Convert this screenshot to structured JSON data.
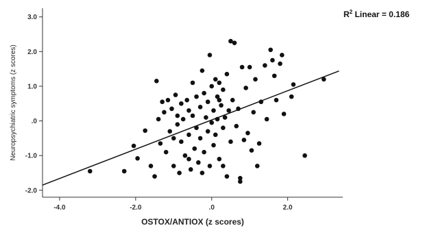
{
  "chart_data": {
    "type": "scatter",
    "xlabel": "OSTOX/ANTIOX (z scores)",
    "ylabel": "Neuropsychiatric symptoms (z scores)",
    "annotation": {
      "r2_label": "R",
      "r2_sup": "2",
      "r2_text": " Linear = 0.186"
    },
    "xlim": [
      -4.45,
      3.45
    ],
    "ylim": [
      -2.2,
      3.25
    ],
    "x_ticks": [
      -4,
      -2,
      0,
      2
    ],
    "x_tick_labels": [
      "-4.0",
      "-2.0",
      ".0",
      "2.0"
    ],
    "y_ticks": [
      -2,
      -1,
      0,
      1,
      2,
      3
    ],
    "y_tick_labels": [
      "-2.0",
      "-1.0",
      ".0",
      "1.0",
      "2.0",
      "3.0"
    ],
    "fit_line": {
      "x": [
        -4.45,
        3.35
      ],
      "y": [
        -1.85,
        1.44
      ]
    },
    "grid": false,
    "marker_color": "#111111",
    "points": [
      {
        "x": -3.2,
        "y": -1.45
      },
      {
        "x": -2.3,
        "y": -1.45
      },
      {
        "x": -2.05,
        "y": -0.72
      },
      {
        "x": -1.95,
        "y": -1.08
      },
      {
        "x": -1.75,
        "y": -0.28
      },
      {
        "x": -1.6,
        "y": -1.3
      },
      {
        "x": -1.5,
        "y": -1.6
      },
      {
        "x": -1.45,
        "y": 1.15
      },
      {
        "x": -1.4,
        "y": 0.05
      },
      {
        "x": -1.35,
        "y": -0.65
      },
      {
        "x": -1.3,
        "y": 0.55
      },
      {
        "x": -1.25,
        "y": 0.25
      },
      {
        "x": -1.2,
        "y": -0.9
      },
      {
        "x": -1.15,
        "y": 0.6
      },
      {
        "x": -1.1,
        "y": -0.3
      },
      {
        "x": -1.05,
        "y": 0.35
      },
      {
        "x": -1.0,
        "y": -1.3
      },
      {
        "x": -0.95,
        "y": 0.75
      },
      {
        "x": -0.9,
        "y": -0.1
      },
      {
        "x": -0.85,
        "y": -1.5
      },
      {
        "x": -0.8,
        "y": 0.5
      },
      {
        "x": -0.8,
        "y": -0.6
      },
      {
        "x": -0.75,
        "y": 0.05
      },
      {
        "x": -0.7,
        "y": -1.0
      },
      {
        "x": -0.65,
        "y": 0.6
      },
      {
        "x": -0.6,
        "y": -0.4
      },
      {
        "x": -0.6,
        "y": 0.3
      },
      {
        "x": -0.55,
        "y": -1.4
      },
      {
        "x": -0.5,
        "y": 1.1
      },
      {
        "x": -0.5,
        "y": 0.15
      },
      {
        "x": -0.45,
        "y": -0.8
      },
      {
        "x": -0.4,
        "y": 0.7
      },
      {
        "x": -0.4,
        "y": -0.2
      },
      {
        "x": -0.35,
        "y": -1.2
      },
      {
        "x": -0.3,
        "y": 0.4
      },
      {
        "x": -0.3,
        "y": -0.5
      },
      {
        "x": -0.25,
        "y": 1.45
      },
      {
        "x": -0.25,
        "y": -1.5
      },
      {
        "x": -0.2,
        "y": 0.8
      },
      {
        "x": -0.2,
        "y": -0.9
      },
      {
        "x": -0.15,
        "y": 0.1
      },
      {
        "x": -0.1,
        "y": -0.3
      },
      {
        "x": -0.1,
        "y": 0.55
      },
      {
        "x": -0.05,
        "y": -1.3
      },
      {
        "x": 0.0,
        "y": 1.0
      },
      {
        "x": 0.0,
        "y": -0.05
      },
      {
        "x": 0.05,
        "y": 0.3
      },
      {
        "x": 0.05,
        "y": -0.7
      },
      {
        "x": 0.1,
        "y": 1.2
      },
      {
        "x": 0.1,
        "y": -0.4
      },
      {
        "x": 0.15,
        "y": 0.7
      },
      {
        "x": 0.15,
        "y": 0.05
      },
      {
        "x": 0.2,
        "y": -1.1
      },
      {
        "x": 0.2,
        "y": 1.1
      },
      {
        "x": 0.25,
        "y": 0.45
      },
      {
        "x": 0.3,
        "y": -0.2
      },
      {
        "x": 0.3,
        "y": 0.9
      },
      {
        "x": 0.35,
        "y": 0.1
      },
      {
        "x": 0.4,
        "y": -1.6
      },
      {
        "x": 0.4,
        "y": 1.35
      },
      {
        "x": 0.45,
        "y": 0.3
      },
      {
        "x": 0.5,
        "y": 2.3
      },
      {
        "x": 0.5,
        "y": -0.6
      },
      {
        "x": 0.55,
        "y": 0.6
      },
      {
        "x": 0.6,
        "y": 2.25
      },
      {
        "x": 0.65,
        "y": -0.15
      },
      {
        "x": 0.7,
        "y": 0.35
      },
      {
        "x": 0.75,
        "y": -1.65
      },
      {
        "x": 0.75,
        "y": -1.75
      },
      {
        "x": 0.8,
        "y": 1.55
      },
      {
        "x": 0.85,
        "y": -0.55
      },
      {
        "x": 0.9,
        "y": 0.95
      },
      {
        "x": 0.95,
        "y": -0.35
      },
      {
        "x": 1.0,
        "y": 1.55
      },
      {
        "x": 1.05,
        "y": -0.85
      },
      {
        "x": 1.1,
        "y": 0.25
      },
      {
        "x": 1.15,
        "y": 1.2
      },
      {
        "x": 1.2,
        "y": -1.3
      },
      {
        "x": 1.25,
        "y": -0.65
      },
      {
        "x": 1.3,
        "y": 0.55
      },
      {
        "x": 1.4,
        "y": 1.6
      },
      {
        "x": 1.45,
        "y": 0.05
      },
      {
        "x": 1.55,
        "y": 2.05
      },
      {
        "x": 1.6,
        "y": 1.75
      },
      {
        "x": 1.65,
        "y": 1.3
      },
      {
        "x": 1.7,
        "y": 0.6
      },
      {
        "x": 1.8,
        "y": 1.65
      },
      {
        "x": 1.85,
        "y": 1.9
      },
      {
        "x": 1.9,
        "y": 0.2
      },
      {
        "x": 2.1,
        "y": 0.7
      },
      {
        "x": 2.15,
        "y": 1.05
      },
      {
        "x": 2.45,
        "y": -1.0
      },
      {
        "x": 2.95,
        "y": 1.2
      },
      {
        "x": -0.05,
        "y": 1.9
      },
      {
        "x": 0.3,
        "y": -1.3
      },
      {
        "x": -0.6,
        "y": -1.1
      },
      {
        "x": -1.0,
        "y": -0.5
      },
      {
        "x": -0.9,
        "y": 0.15
      },
      {
        "x": 0.2,
        "y": 0.6
      }
    ]
  }
}
